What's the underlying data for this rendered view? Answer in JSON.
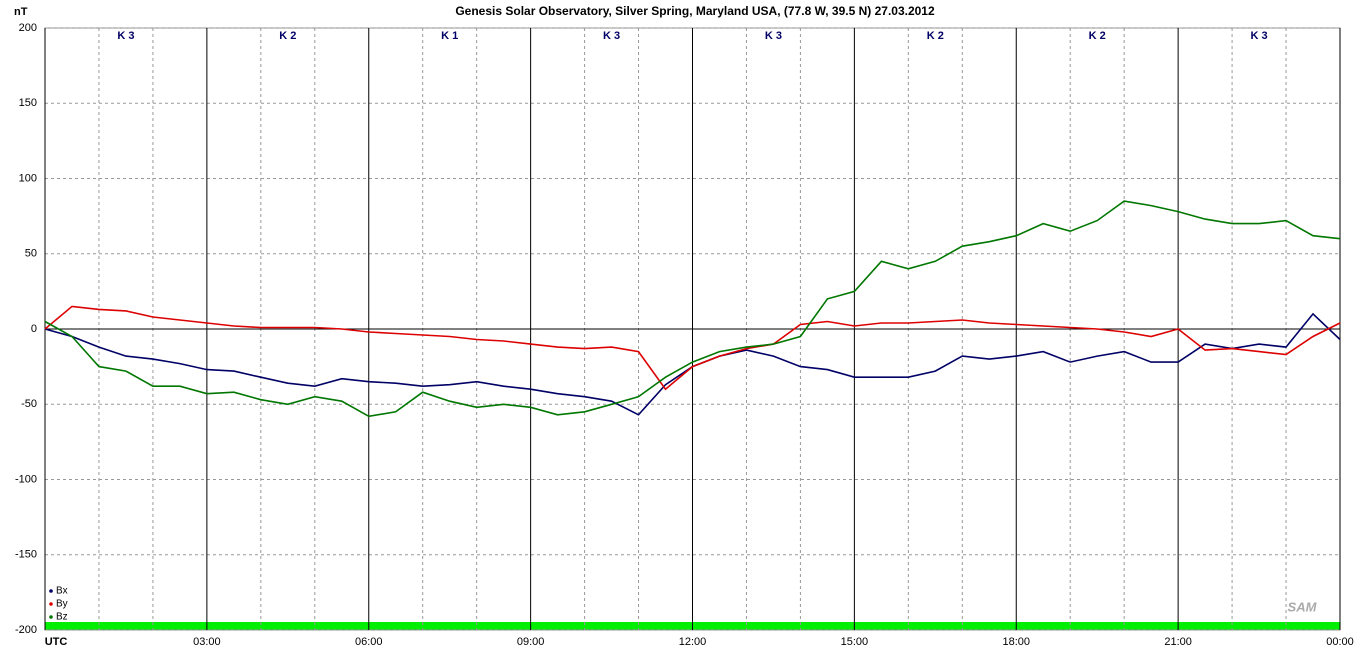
{
  "chart_data": {
    "type": "line",
    "title": "Genesis Solar Observatory, Silver Spring, Maryland USA, (77.8 W, 39.5 N)  27.03.2012",
    "y_label": "nT",
    "logo": "SAM",
    "k_index": [
      "K 3",
      "K 2",
      "K 1",
      "K 3",
      "K 3",
      "K 2",
      "K 2",
      "K 3"
    ],
    "x": [
      0,
      0.5,
      1,
      1.5,
      2,
      2.5,
      3,
      3.5,
      4,
      4.5,
      5,
      5.5,
      6,
      6.5,
      7,
      7.5,
      8,
      8.5,
      9,
      9.5,
      10,
      10.5,
      11,
      11.5,
      12,
      12.5,
      13,
      13.5,
      14,
      14.5,
      15,
      15.5,
      16,
      16.5,
      17,
      17.5,
      18,
      18.5,
      19,
      19.5,
      20,
      20.5,
      21,
      21.5,
      22,
      22.5,
      23,
      23.5,
      24
    ],
    "series": [
      {
        "name": "Bx",
        "color": "#000066",
        "values": [
          0,
          -5,
          -12,
          -18,
          -20,
          -23,
          -27,
          -28,
          -32,
          -36,
          -38,
          -33,
          -35,
          -36,
          -38,
          -37,
          -35,
          -38,
          -40,
          -43,
          -45,
          -48,
          -57,
          -37,
          -25,
          -18,
          -14,
          -18,
          -25,
          -27,
          -32,
          -32,
          -32,
          -28,
          -18,
          -20,
          -18,
          -15,
          -22,
          -18,
          -15,
          -22,
          -22,
          -10,
          -13,
          -10,
          -12,
          10,
          -7
        ]
      },
      {
        "name": "By",
        "color": "#dd0000",
        "values": [
          0,
          15,
          13,
          12,
          8,
          6,
          4,
          2,
          1,
          1,
          1,
          0,
          -2,
          -3,
          -4,
          -5,
          -7,
          -8,
          -10,
          -12,
          -13,
          -12,
          -15,
          -40,
          -25,
          -18,
          -13,
          -10,
          3,
          5,
          2,
          4,
          4,
          5,
          6,
          4,
          3,
          2,
          1,
          0,
          -2,
          -5,
          0,
          -14,
          -13,
          -15,
          -17,
          -5,
          4
        ]
      },
      {
        "name": "Bz",
        "color": "#007700",
        "values": [
          5,
          -5,
          -25,
          -28,
          -38,
          -38,
          -43,
          -42,
          -47,
          -50,
          -45,
          -48,
          -58,
          -55,
          -42,
          -48,
          -52,
          -50,
          -52,
          -57,
          -55,
          -50,
          -45,
          -32,
          -22,
          -15,
          -12,
          -10,
          -5,
          20,
          25,
          45,
          40,
          45,
          55,
          58,
          62,
          70,
          65,
          72,
          85,
          82,
          78,
          73,
          70,
          70,
          72,
          62,
          60
        ]
      }
    ],
    "xlim": [
      0,
      24
    ],
    "xticks": [
      {
        "value": 0,
        "label": "UTC"
      },
      {
        "value": 3,
        "label": "03:00"
      },
      {
        "value": 6,
        "label": "06:00"
      },
      {
        "value": 9,
        "label": "09:00"
      },
      {
        "value": 12,
        "label": "12:00"
      },
      {
        "value": 15,
        "label": "15:00"
      },
      {
        "value": 18,
        "label": "18:00"
      },
      {
        "value": 21,
        "label": "21:00"
      },
      {
        "value": 24,
        "label": "00:00"
      }
    ],
    "xminorticks": [
      1,
      2,
      4,
      5,
      7,
      8,
      10,
      11,
      13,
      14,
      16,
      17,
      19,
      20,
      22,
      23
    ],
    "ylim": [
      -200,
      200
    ],
    "yticks": [
      200,
      150,
      100,
      50,
      0,
      -50,
      -100,
      -150,
      -200
    ],
    "grid": true,
    "legend": "lower left"
  }
}
